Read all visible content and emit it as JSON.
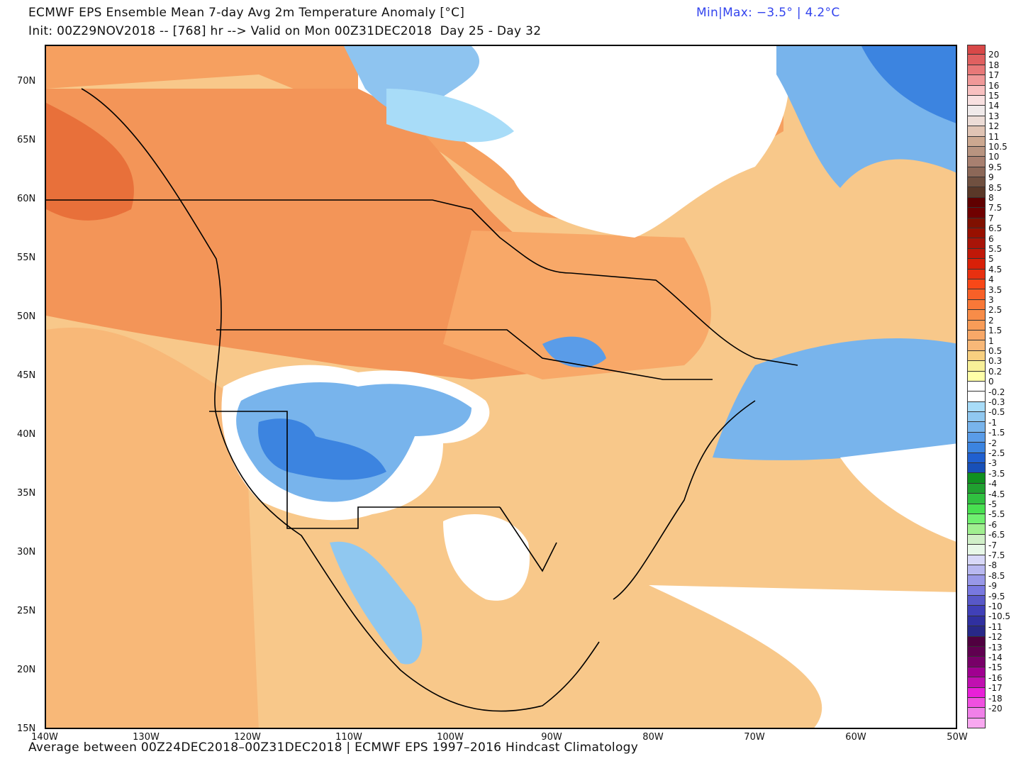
{
  "header": {
    "title": "ECMWF EPS Ensemble Mean 7-day Avg 2m Temperature Anomaly [°C]",
    "init_line": "Init: 00Z29NOV2018 -- [768] hr --> Valid on Mon 00Z31DEC2018  Day 25 - Day 32",
    "minmax": "Min|Max: −3.5° | 4.2°C"
  },
  "footer": "Average between 00Z24DEC2018–00Z31DEC2018 | ECMWF EPS 1997–2016 Hindcast Climatology",
  "lat_labels": [
    "70N",
    "65N",
    "60N",
    "55N",
    "50N",
    "45N",
    "40N",
    "35N",
    "30N",
    "25N",
    "20N",
    "15N"
  ],
  "lon_labels": [
    "140W",
    "130W",
    "120W",
    "110W",
    "100W",
    "90W",
    "80W",
    "70W",
    "60W",
    "50W"
  ],
  "colorbar": {
    "labels": [
      "20",
      "18",
      "17",
      "16",
      "15",
      "14",
      "13",
      "12",
      "11",
      "10.5",
      "10",
      "9.5",
      "9",
      "8.5",
      "8",
      "7.5",
      "7",
      "6.5",
      "6",
      "5.5",
      "5",
      "4.5",
      "4",
      "3.5",
      "3",
      "2.5",
      "2",
      "1.5",
      "1",
      "0.5",
      "0.3",
      "0.2",
      "0",
      "-0.2",
      "-0.3",
      "-0.5",
      "-1",
      "-1.5",
      "-2",
      "-2.5",
      "-3",
      "-3.5",
      "-4",
      "-4.5",
      "-5",
      "-5.5",
      "-6",
      "-6.5",
      "-7",
      "-7.5",
      "-8",
      "-8.5",
      "-9",
      "-9.5",
      "-10",
      "-10.5",
      "-11",
      "-12",
      "-13",
      "-14",
      "-15",
      "-16",
      "-17",
      "-18",
      "-20"
    ],
    "colors": [
      "#d84848",
      "#e06060",
      "#e87878",
      "#f09898",
      "#f8c0c0",
      "#f8e0e0",
      "#f0eaea",
      "#ecdcd6",
      "#e0c4b4",
      "#cca890",
      "#b89480",
      "#a88070",
      "#8c6858",
      "#705040",
      "#5a3828",
      "#600000",
      "#700000",
      "#801000",
      "#981000",
      "#a81408",
      "#c01808",
      "#d82008",
      "#e83010",
      "#f84818",
      "#f86028",
      "#f87838",
      "#f88c48",
      "#f89c58",
      "#f8a868",
      "#f8b878",
      "#f8d080",
      "#f8f098",
      "#ffffa8",
      "#ffffff",
      "#ffffff",
      "#a8dcf8",
      "#90c8f0",
      "#78b4ec",
      "#5a9ce8",
      "#3c84e0",
      "#2060d0",
      "#1850b8",
      "#109020",
      "#20a030",
      "#30c040",
      "#48e050",
      "#70f070",
      "#a0f090",
      "#d0f0c8",
      "#e8f8e8",
      "#d8d8f8",
      "#b8b8f0",
      "#9898e8",
      "#7878e0",
      "#5858c8",
      "#4040b8",
      "#3030a0",
      "#282888",
      "#500040",
      "#600050",
      "#780068",
      "#a00090",
      "#c010b0",
      "#e820d8",
      "#f050e0",
      "#f080e8",
      "#f8a8f0"
    ]
  },
  "legend_colors": {
    "land_warm": "#f8b878",
    "warm2": "#f6a060",
    "warm3": "#f08848",
    "cold": "#5a9ce8"
  }
}
